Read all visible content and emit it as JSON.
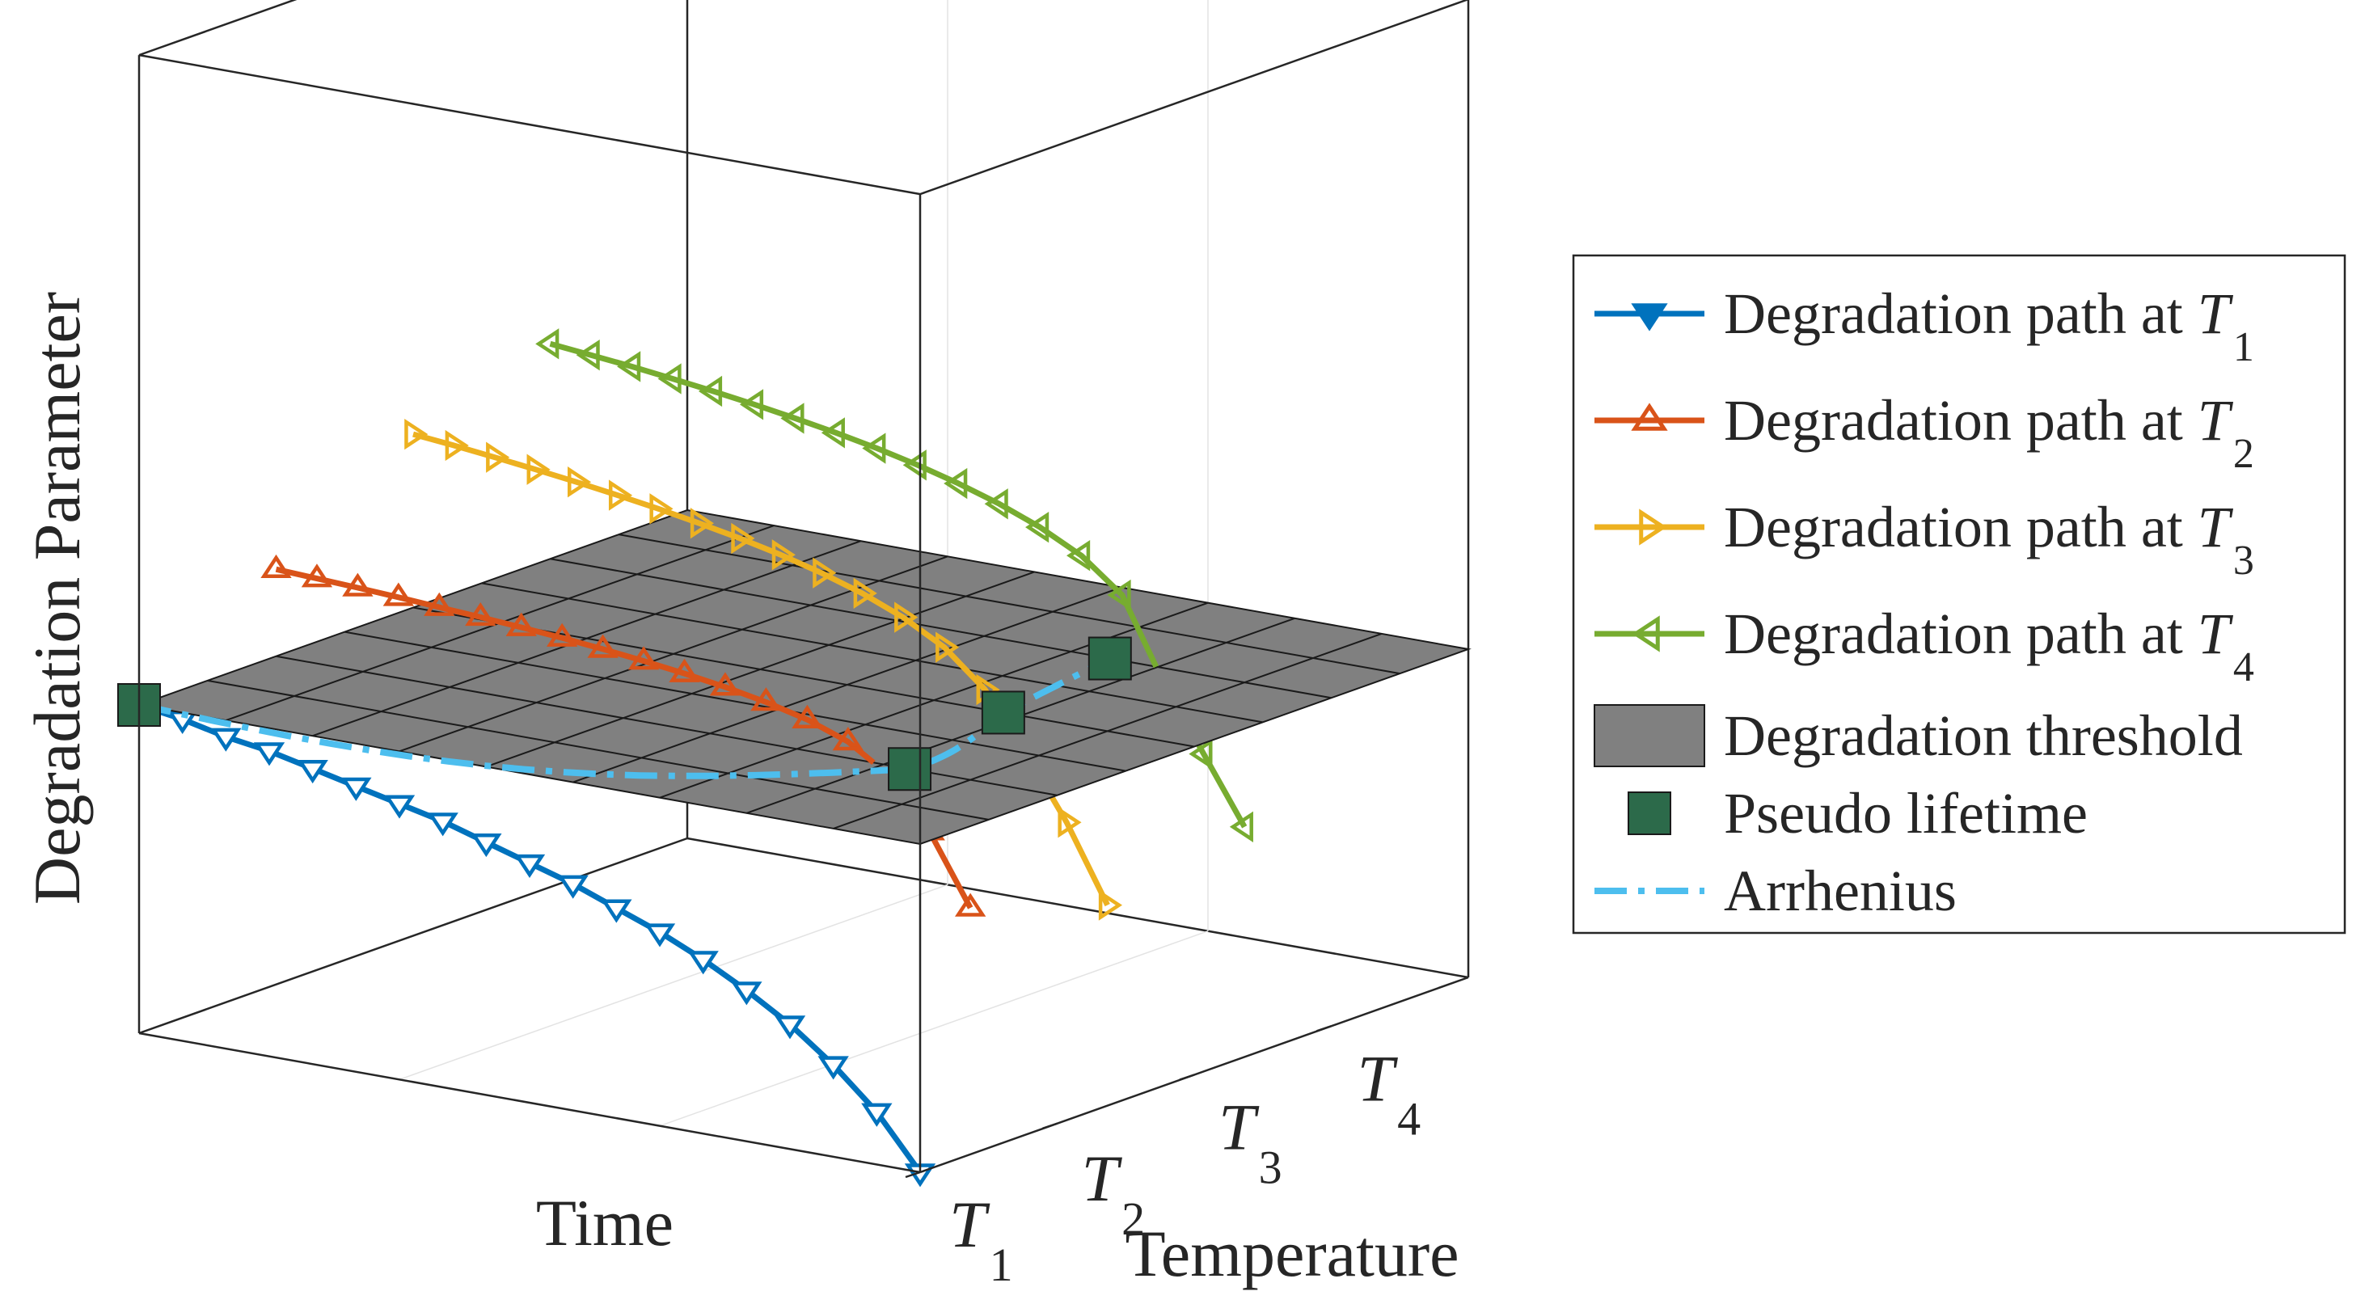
{
  "chart_data": {
    "type": "line3d",
    "title": "",
    "xlabel": "Time",
    "ylabel": "Temperature",
    "zlabel": "Degradation Parameter",
    "y_ticks": [
      {
        "var": "T",
        "sub": "1"
      },
      {
        "var": "T",
        "sub": "2"
      },
      {
        "var": "T",
        "sub": "3"
      },
      {
        "var": "T",
        "sub": "4"
      }
    ],
    "series": [
      {
        "name": "Degradation path at T1",
        "label_prefix": "Degradation path at ",
        "label_var": "T",
        "label_sub": "1",
        "temperature_index": 1,
        "color": "#0072BD",
        "marker": "triangle-down",
        "time": [
          0,
          1,
          2,
          3,
          4,
          5,
          6,
          7,
          8,
          9,
          10,
          11,
          12,
          13,
          14,
          15,
          16,
          17,
          18
        ],
        "values": [
          0,
          -0.02,
          -0.05,
          -0.07,
          -0.1,
          -0.13,
          -0.16,
          -0.19,
          -0.23,
          -0.27,
          -0.31,
          -0.36,
          -0.41,
          -0.47,
          -0.54,
          -0.62,
          -0.72,
          -0.84,
          -1.0
        ]
      },
      {
        "name": "Degradation path at T2",
        "label_prefix": "Degradation path at ",
        "label_var": "T",
        "label_sub": "2",
        "temperature_index": 2,
        "color": "#D95319",
        "marker": "triangle-up",
        "time": [
          0,
          0.94,
          1.88,
          2.82,
          3.76,
          4.71,
          5.65,
          6.59,
          7.53,
          8.47,
          9.41,
          10.35,
          11.29,
          12.24,
          13.18,
          14.12,
          15.06,
          16
        ],
        "values": [
          0.265,
          0.259,
          0.253,
          0.246,
          0.238,
          0.23,
          0.221,
          0.211,
          0.199,
          0.185,
          0.169,
          0.15,
          0.126,
          0.095,
          0.05,
          -0.03,
          -0.18,
          -0.39
        ]
      },
      {
        "name": "Degradation path at T3",
        "label_prefix": "Degradation path at ",
        "label_var": "T",
        "label_sub": "3",
        "temperature_index": 3,
        "color": "#EDB120",
        "marker": "triangle-right",
        "time": [
          0,
          0.94,
          1.88,
          2.82,
          3.76,
          4.71,
          5.65,
          6.59,
          7.53,
          8.47,
          9.41,
          10.35,
          11.29,
          12.24,
          13.18,
          14.12,
          15.06,
          16
        ],
        "values": [
          0.528,
          0.516,
          0.502,
          0.487,
          0.471,
          0.453,
          0.434,
          0.412,
          0.388,
          0.36,
          0.327,
          0.287,
          0.236,
          0.167,
          0.06,
          -0.11,
          -0.3,
          -0.53
        ]
      },
      {
        "name": "Degradation path at T4",
        "label_prefix": "Degradation path at ",
        "label_var": "T",
        "label_sub": "4",
        "temperature_index": 4,
        "color": "#77AC30",
        "marker": "triangle-left",
        "time": [
          0,
          0.94,
          1.88,
          2.82,
          3.76,
          4.71,
          5.65,
          6.59,
          7.53,
          8.47,
          9.41,
          10.35,
          11.29,
          12.24,
          13.18,
          14.12,
          15.06,
          16
        ],
        "values": [
          0.655,
          0.643,
          0.63,
          0.615,
          0.599,
          0.581,
          0.561,
          0.539,
          0.514,
          0.485,
          0.451,
          0.411,
          0.362,
          0.298,
          0.2,
          -0.04,
          -0.24,
          -0.44
        ]
      }
    ],
    "threshold": {
      "name": "Degradation threshold",
      "value": 0,
      "color": "#808080"
    },
    "pseudo_lifetime": {
      "name": "Pseudo lifetime",
      "color": "#2C6A4A",
      "times": [
        0,
        14.6,
        13.6,
        12.9
      ],
      "temperature_index": [
        1,
        2,
        3,
        4
      ]
    },
    "arrhenius": {
      "name": "Arrhenius",
      "color": "#4DBEEE",
      "style": "dash-dot"
    },
    "legend_position": "right",
    "grid": true
  }
}
